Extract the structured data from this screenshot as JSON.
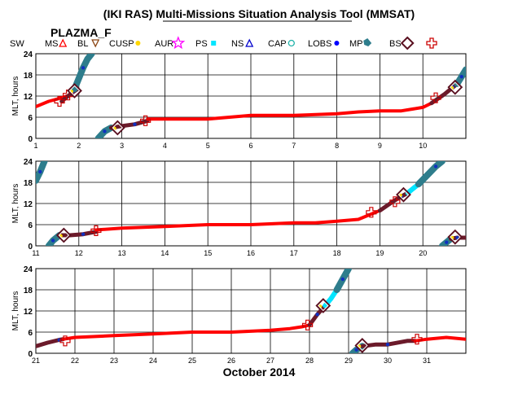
{
  "title": "(IKI RAS) Multi-Missions Situation Analysis Tool (MMSAT)",
  "subtitle": "PLAZMA_F",
  "xlabel": "October 2014",
  "legend": [
    {
      "label": "SW",
      "symbol": "none",
      "color": "#000000"
    },
    {
      "label": "MS",
      "symbol": "triangle",
      "color": "#ff0000"
    },
    {
      "label": "BL",
      "symbol": "triangle-down",
      "color": "#8b4513"
    },
    {
      "label": "CUSP",
      "symbol": "dot",
      "color": "#ffd700"
    },
    {
      "label": "AUR",
      "symbol": "star",
      "color": "#ff00ff"
    },
    {
      "label": "PS",
      "symbol": "square",
      "color": "#00e5ff"
    },
    {
      "label": "NS",
      "symbol": "triangle",
      "color": "#0000cc"
    },
    {
      "label": "CAP",
      "symbol": "circle",
      "color": "#20b2aa"
    },
    {
      "label": "LOBS",
      "symbol": "dot",
      "color": "#0000ff"
    },
    {
      "label": "MP",
      "symbol": "pentagon",
      "color": "#2e7d8c"
    },
    {
      "label": "BS",
      "symbol": "diamond",
      "color": "#5a1020"
    },
    {
      "label": "",
      "symbol": "cross",
      "color": "#cc0000"
    }
  ],
  "colors": {
    "sw": "#ff0000",
    "ms": "#6b1a2a",
    "mp": "#2e7d8c",
    "ps": "#00e5ff",
    "lobs": "#1030c0",
    "aur": "#ff00ff",
    "cusp": "#ffd700",
    "cross": "#cc0000"
  },
  "chart_data": [
    {
      "type": "line",
      "ylabel": "MLT, hours",
      "xlim": [
        1,
        11
      ],
      "ylim": [
        0,
        24
      ],
      "xticks": [
        1,
        2,
        3,
        4,
        5,
        6,
        7,
        8,
        9,
        10
      ],
      "yticks": [
        0,
        6,
        12,
        18,
        24
      ],
      "segments": [
        {
          "region": "SW",
          "x": [
            1.0,
            1.3,
            1.6,
            1.85
          ],
          "y": [
            9,
            10.5,
            11.5,
            12.5
          ]
        },
        {
          "region": "MS",
          "x": [
            1.6,
            1.75,
            1.85,
            1.97
          ],
          "y": [
            10.5,
            12,
            13,
            14
          ]
        },
        {
          "region": "MP",
          "x": [
            1.9,
            2.0,
            2.1,
            2.2,
            2.3
          ],
          "y": [
            14,
            17,
            20,
            22.5,
            24
          ]
        },
        {
          "region": "MP",
          "x": [
            2.45,
            2.6,
            2.75
          ],
          "y": [
            0,
            2,
            3
          ]
        },
        {
          "region": "MS",
          "x": [
            2.75,
            3.0,
            3.3,
            3.6
          ],
          "y": [
            3,
            3.5,
            4,
            5
          ]
        },
        {
          "region": "SW",
          "x": [
            3.6,
            4.0,
            5.0,
            6.0,
            7.0,
            8.0,
            8.5,
            9.0,
            9.5,
            10.0,
            10.2
          ],
          "y": [
            5.5,
            5.5,
            5.5,
            6.5,
            6.5,
            7,
            7.5,
            7.8,
            7.8,
            8.8,
            10
          ]
        },
        {
          "region": "MS",
          "x": [
            10.2,
            10.5,
            10.7,
            10.8
          ],
          "y": [
            10,
            12.5,
            14.5,
            15.5
          ]
        },
        {
          "region": "MP",
          "x": [
            10.8,
            10.9,
            11.0
          ],
          "y": [
            15.5,
            17.5,
            19.5
          ]
        }
      ],
      "crossings": [
        {
          "x": 1.55,
          "y": 10.5
        },
        {
          "x": 1.75,
          "y": 12.3
        },
        {
          "x": 3.55,
          "y": 5.0
        },
        {
          "x": 10.3,
          "y": 11.5
        }
      ],
      "bow_shocks": [
        {
          "x": 1.9,
          "y": 13.5
        },
        {
          "x": 2.9,
          "y": 3.0
        },
        {
          "x": 10.75,
          "y": 14.5
        }
      ]
    },
    {
      "type": "line",
      "ylabel": "MLT, hours",
      "xlim": [
        11,
        21
      ],
      "ylim": [
        0,
        24
      ],
      "xticks": [
        11,
        12,
        13,
        14,
        15,
        16,
        17,
        18,
        19,
        20
      ],
      "yticks": [
        0,
        6,
        12,
        18,
        24
      ],
      "segments": [
        {
          "region": "MP",
          "x": [
            11.0,
            11.1,
            11.2
          ],
          "y": [
            18.5,
            21,
            24
          ]
        },
        {
          "region": "MP",
          "x": [
            11.3,
            11.4,
            11.55
          ],
          "y": [
            0,
            1.5,
            3
          ]
        },
        {
          "region": "MS",
          "x": [
            11.55,
            11.8,
            12.1,
            12.4
          ],
          "y": [
            3,
            3,
            3.3,
            4
          ]
        },
        {
          "region": "SW",
          "x": [
            12.4,
            13.0,
            14.0,
            15.0,
            16.0,
            17.0,
            17.5,
            18.0,
            18.5,
            18.8,
            19.0
          ],
          "y": [
            4.5,
            5,
            5.5,
            6,
            6,
            6.5,
            6.5,
            7,
            7.5,
            9,
            10
          ]
        },
        {
          "region": "MS",
          "x": [
            19.0,
            19.3,
            19.5,
            19.65
          ],
          "y": [
            10,
            12.5,
            14,
            15
          ]
        },
        {
          "region": "PS",
          "x": [
            19.65,
            19.8,
            19.9
          ],
          "y": [
            15,
            16.5,
            17.5
          ]
        },
        {
          "region": "MP",
          "x": [
            19.9,
            20.1,
            20.3,
            20.45
          ],
          "y": [
            17.5,
            20,
            22.5,
            24
          ]
        },
        {
          "region": "MP",
          "x": [
            20.45,
            20.55,
            20.65
          ],
          "y": [
            0,
            1,
            2
          ]
        },
        {
          "region": "MS",
          "x": [
            20.65,
            20.8,
            21.0
          ],
          "y": [
            2,
            2.3,
            2.3
          ]
        }
      ],
      "crossings": [
        {
          "x": 12.4,
          "y": 4.3
        },
        {
          "x": 18.8,
          "y": 9.5
        },
        {
          "x": 19.35,
          "y": 12.5
        }
      ],
      "bow_shocks": [
        {
          "x": 11.65,
          "y": 3.0
        },
        {
          "x": 19.55,
          "y": 14.5
        },
        {
          "x": 20.75,
          "y": 2.5
        }
      ]
    },
    {
      "type": "line",
      "ylabel": "MLT, hours",
      "xlim": [
        21,
        32
      ],
      "ylim": [
        0,
        24
      ],
      "xticks": [
        21,
        22,
        23,
        24,
        25,
        26,
        27,
        28,
        29,
        30,
        31
      ],
      "yticks": [
        0,
        6,
        12,
        18,
        24
      ],
      "segments": [
        {
          "region": "MS",
          "x": [
            21.0,
            21.3,
            21.6,
            21.7
          ],
          "y": [
            2,
            3,
            3.8,
            4
          ]
        },
        {
          "region": "SW",
          "x": [
            21.7,
            22.0,
            23.0,
            24.0,
            25.0,
            26.0,
            27.0,
            27.5,
            27.8,
            28.0
          ],
          "y": [
            4,
            4.5,
            5,
            5.5,
            6,
            6,
            6.5,
            7,
            7.5,
            8
          ]
        },
        {
          "region": "MS",
          "x": [
            28.0,
            28.2,
            28.4
          ],
          "y": [
            8,
            11,
            13.5
          ]
        },
        {
          "region": "PS",
          "x": [
            28.4,
            28.55,
            28.7
          ],
          "y": [
            13.5,
            15.5,
            18
          ]
        },
        {
          "region": "MP",
          "x": [
            28.7,
            28.85,
            29.0
          ],
          "y": [
            18,
            21,
            24
          ]
        },
        {
          "region": "MP",
          "x": [
            29.1,
            29.2,
            29.35
          ],
          "y": [
            0,
            1,
            2
          ]
        },
        {
          "region": "MS",
          "x": [
            29.35,
            29.7,
            30.0,
            30.5,
            30.7
          ],
          "y": [
            2,
            2.5,
            2.5,
            3.5,
            3.5
          ]
        },
        {
          "region": "SW",
          "x": [
            30.7,
            31.0,
            31.5,
            32.0
          ],
          "y": [
            3.5,
            4,
            4.5,
            4
          ]
        }
      ],
      "crossings": [
        {
          "x": 21.75,
          "y": 3.5
        },
        {
          "x": 27.95,
          "y": 8
        },
        {
          "x": 30.75,
          "y": 4.0
        }
      ],
      "bow_shocks": [
        {
          "x": 28.35,
          "y": 13.5
        },
        {
          "x": 29.35,
          "y": 2.2
        }
      ]
    }
  ]
}
